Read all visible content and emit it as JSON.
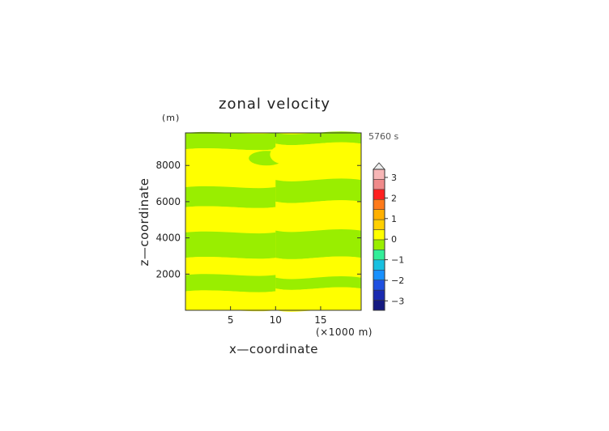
{
  "chart_data": {
    "type": "heatmap",
    "title": "zonal velocity",
    "units_label": "(m)",
    "time_label": "5760 s",
    "xlabel": "x—coordinate",
    "x_units": "(×1000 m)",
    "ylabel": "z—coordinate",
    "xlim": [
      0,
      19.5
    ],
    "ylim": [
      0,
      9800
    ],
    "xticks": [
      "5",
      "10",
      "15"
    ],
    "yticks": [
      "2000",
      "4000",
      "6000",
      "8000"
    ],
    "grid": false,
    "colorbar": {
      "ticks": [
        "3",
        "2",
        "1",
        "0",
        "−1",
        "−2",
        "−3"
      ],
      "levels": [
        {
          "lo": 3.0,
          "color": "#f7b6b6"
        },
        {
          "lo": 2.5,
          "color": "#f08a8a"
        },
        {
          "lo": 2.0,
          "color": "#ff2020"
        },
        {
          "lo": 1.5,
          "color": "#ff7a1a"
        },
        {
          "lo": 1.0,
          "color": "#ffb000"
        },
        {
          "lo": 0.5,
          "color": "#ffd000"
        },
        {
          "lo": 0.0,
          "color": "#ffff00"
        },
        {
          "lo": -0.5,
          "color": "#99ee00"
        },
        {
          "lo": -1.0,
          "color": "#33ee99"
        },
        {
          "lo": -1.5,
          "color": "#18c0e0"
        },
        {
          "lo": -2.0,
          "color": "#1890ff"
        },
        {
          "lo": -2.5,
          "color": "#1f50e0"
        },
        {
          "lo": -3.0,
          "color": "#1a2ab0"
        },
        {
          "lo": -3.5,
          "color": "#151a80"
        }
      ]
    },
    "field_colors": {
      "positive": "#ffff00",
      "negative": "#99ee00"
    },
    "bands": [
      {
        "z_top_left": 9800,
        "z_bottom_left": 8900,
        "z_top_right": 9800,
        "z_bottom_right": 9200,
        "sign": "negative"
      },
      {
        "z_top_left": 8900,
        "z_bottom_left": 6800,
        "z_top_right": 9200,
        "z_bottom_right": 7200,
        "sign": "positive"
      },
      {
        "z_top_left": 6800,
        "z_bottom_left": 5700,
        "z_top_right": 7200,
        "z_bottom_right": 6000,
        "sign": "negative"
      },
      {
        "z_top_left": 5700,
        "z_bottom_left": 4300,
        "z_top_right": 6000,
        "z_bottom_right": 4400,
        "sign": "positive"
      },
      {
        "z_top_left": 4300,
        "z_bottom_left": 2900,
        "z_top_right": 4400,
        "z_bottom_right": 2900,
        "sign": "negative"
      },
      {
        "z_top_left": 2900,
        "z_bottom_left": 1950,
        "z_top_right": 2900,
        "z_bottom_right": 1800,
        "sign": "positive"
      },
      {
        "z_top_left": 1950,
        "z_bottom_left": 1050,
        "z_top_right": 1800,
        "z_bottom_right": 1200,
        "sign": "negative"
      },
      {
        "z_top_left": 1050,
        "z_bottom_left": 0,
        "z_top_right": 1200,
        "z_bottom_right": 0,
        "sign": "positive"
      }
    ]
  }
}
